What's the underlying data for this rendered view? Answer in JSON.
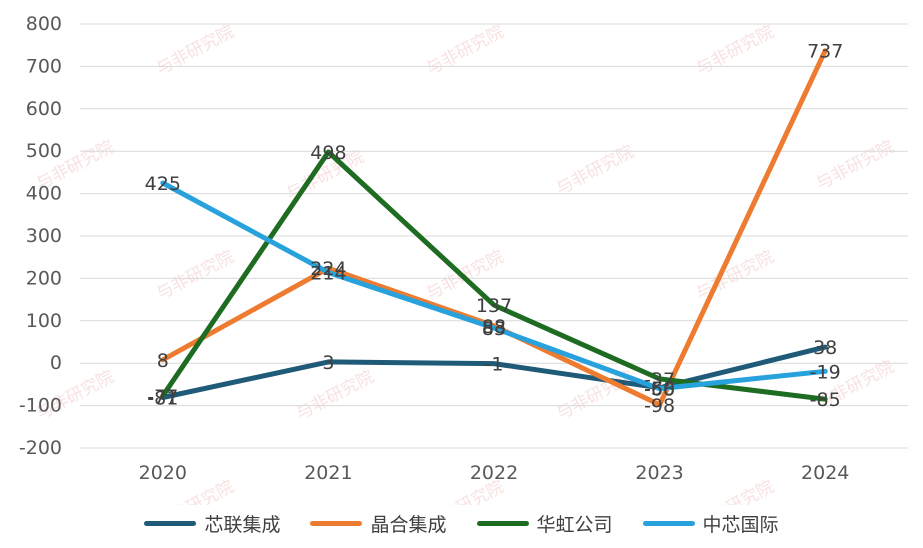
{
  "chart_data": {
    "type": "line",
    "title": "",
    "xlabel": "",
    "ylabel": "",
    "categories": [
      "2020",
      "2021",
      "2022",
      "2023",
      "2024"
    ],
    "ylim": [
      -200,
      800
    ],
    "yticks": [
      800,
      700,
      600,
      500,
      400,
      300,
      200,
      100,
      0,
      -100,
      -200
    ],
    "grid": true,
    "legend_position": "bottom",
    "series": [
      {
        "name": "芯联集成",
        "color": "#1f5a78",
        "values": [
          -81,
          3,
          -1,
          -58,
          38
        ],
        "labels": [
          "-81",
          "3",
          "-1",
          "-58",
          "38"
        ]
      },
      {
        "name": "晶合集成",
        "color": "#ed7c31",
        "values": [
          8,
          224,
          88,
          -98,
          737
        ],
        "labels": [
          "8",
          "224",
          "88",
          "-98",
          "737"
        ]
      },
      {
        "name": "华虹公司",
        "color": "#1e6b22",
        "values": [
          -77,
          498,
          137,
          -37,
          -85
        ],
        "labels": [
          "-77",
          "498",
          "137",
          "-37",
          "-85"
        ]
      },
      {
        "name": "中芯国际",
        "color": "#27a2dc",
        "values": [
          425,
          214,
          83,
          -60,
          -19
        ],
        "labels": [
          "425",
          "214",
          "83",
          "-60",
          "-19"
        ]
      }
    ]
  },
  "watermark": {
    "text": "与非研究院"
  }
}
